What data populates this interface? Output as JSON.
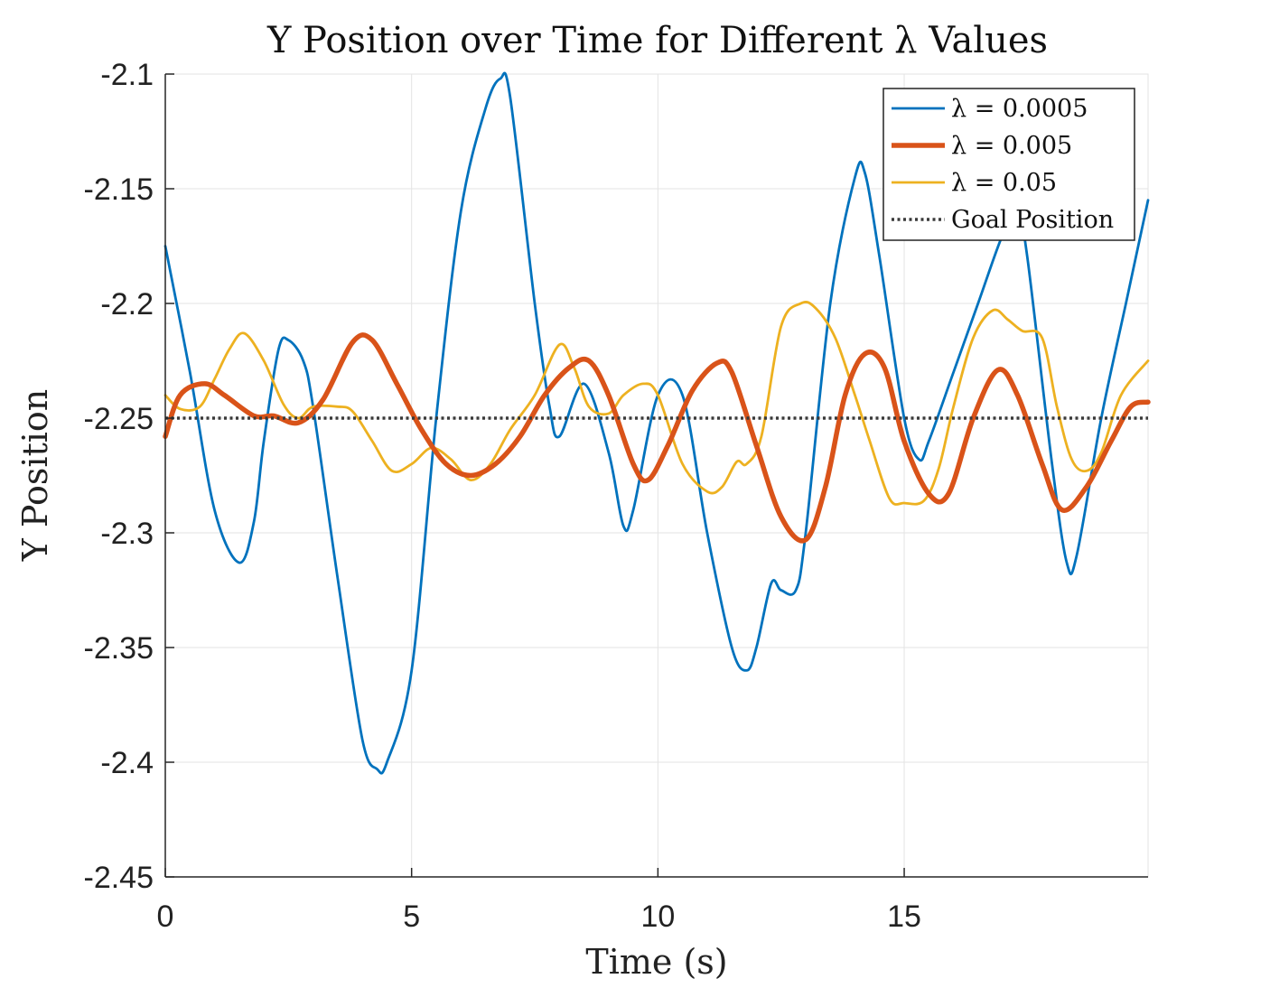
{
  "chart_data": {
    "type": "line",
    "title": "Y Position over Time for Different λ Values",
    "xlabel": "Time (s)",
    "ylabel": "Y Position",
    "xlim": [
      0,
      19.95
    ],
    "ylim": [
      -2.45,
      -2.1
    ],
    "xticks": [
      0,
      5,
      10,
      15
    ],
    "xtick_labels": [
      "0",
      "5",
      "10",
      "15"
    ],
    "yticks": [
      -2.1,
      -2.15,
      -2.2,
      -2.25,
      -2.3,
      -2.35,
      -2.4,
      -2.45
    ],
    "ytick_labels": [
      "-2.1",
      "-2.15",
      "-2.2",
      "-2.25",
      "-2.3",
      "-2.35",
      "-2.4",
      "-2.45"
    ],
    "grid": true,
    "legend_position": "top-right",
    "series": [
      {
        "name": "λ = 0.0005",
        "color": "#0072BD",
        "style": "solid",
        "x": [
          0,
          0.5,
          1.0,
          1.5,
          1.8,
          2.0,
          2.3,
          2.5,
          2.8,
          3.0,
          3.5,
          4.0,
          4.3,
          4.5,
          5.0,
          5.5,
          6.0,
          6.5,
          6.8,
          7.0,
          7.5,
          7.8,
          8.0,
          8.5,
          9.0,
          9.3,
          9.5,
          10.0,
          10.5,
          11.0,
          11.5,
          11.8,
          12.0,
          12.3,
          12.5,
          12.8,
          13.0,
          13.5,
          14.0,
          14.2,
          14.5,
          15.0,
          15.3,
          15.5,
          16.0,
          16.5,
          17.0,
          17.3,
          17.5,
          18.0,
          18.3,
          18.5,
          19.0,
          19.5,
          19.95
        ],
        "y": [
          -2.175,
          -2.23,
          -2.29,
          -2.313,
          -2.295,
          -2.26,
          -2.22,
          -2.216,
          -2.225,
          -2.245,
          -2.32,
          -2.39,
          -2.403,
          -2.4,
          -2.36,
          -2.25,
          -2.16,
          -2.115,
          -2.102,
          -2.11,
          -2.2,
          -2.245,
          -2.258,
          -2.235,
          -2.265,
          -2.297,
          -2.29,
          -2.24,
          -2.24,
          -2.3,
          -2.35,
          -2.36,
          -2.35,
          -2.322,
          -2.325,
          -2.325,
          -2.3,
          -2.2,
          -2.145,
          -2.143,
          -2.18,
          -2.25,
          -2.268,
          -2.26,
          -2.23,
          -2.2,
          -2.17,
          -2.16,
          -2.18,
          -2.27,
          -2.313,
          -2.31,
          -2.25,
          -2.2,
          -2.155
        ]
      },
      {
        "name": "λ = 0.005",
        "color": "#D95319",
        "style": "bold",
        "x": [
          0,
          0.3,
          0.8,
          1.2,
          1.8,
          2.2,
          2.7,
          3.2,
          3.8,
          4.2,
          4.7,
          5.2,
          5.7,
          6.2,
          6.7,
          7.2,
          7.7,
          8.2,
          8.6,
          9.0,
          9.5,
          9.8,
          10.2,
          10.7,
          11.2,
          11.5,
          12.0,
          12.5,
          13.0,
          13.4,
          13.8,
          14.2,
          14.6,
          15.0,
          15.5,
          15.9,
          16.4,
          16.9,
          17.3,
          17.8,
          18.2,
          18.7,
          19.2,
          19.6,
          19.95
        ],
        "y": [
          -2.258,
          -2.24,
          -2.235,
          -2.24,
          -2.249,
          -2.249,
          -2.252,
          -2.242,
          -2.217,
          -2.216,
          -2.235,
          -2.255,
          -2.27,
          -2.275,
          -2.27,
          -2.258,
          -2.24,
          -2.228,
          -2.225,
          -2.24,
          -2.27,
          -2.277,
          -2.262,
          -2.238,
          -2.226,
          -2.23,
          -2.262,
          -2.293,
          -2.303,
          -2.28,
          -2.24,
          -2.222,
          -2.228,
          -2.26,
          -2.283,
          -2.283,
          -2.25,
          -2.229,
          -2.24,
          -2.27,
          -2.29,
          -2.28,
          -2.26,
          -2.245,
          -2.243
        ]
      },
      {
        "name": "λ = 0.05",
        "color": "#EDB120",
        "style": "solid",
        "x": [
          0,
          0.3,
          0.7,
          1.0,
          1.3,
          1.6,
          2.0,
          2.4,
          2.7,
          3.0,
          3.5,
          3.8,
          4.2,
          4.6,
          5.0,
          5.4,
          5.8,
          6.2,
          6.6,
          7.0,
          7.5,
          8.0,
          8.3,
          8.6,
          9.0,
          9.3,
          9.7,
          10.0,
          10.5,
          11.0,
          11.3,
          11.6,
          11.8,
          12.1,
          12.5,
          12.9,
          13.2,
          13.6,
          14.0,
          14.3,
          14.7,
          15.0,
          15.4,
          15.7,
          16.0,
          16.4,
          16.8,
          17.1,
          17.4,
          17.8,
          18.1,
          18.4,
          18.7,
          19.0,
          19.4,
          19.95
        ],
        "y": [
          -2.24,
          -2.246,
          -2.245,
          -2.233,
          -2.22,
          -2.213,
          -2.225,
          -2.244,
          -2.25,
          -2.245,
          -2.245,
          -2.247,
          -2.26,
          -2.273,
          -2.27,
          -2.263,
          -2.268,
          -2.277,
          -2.27,
          -2.255,
          -2.24,
          -2.218,
          -2.228,
          -2.245,
          -2.248,
          -2.24,
          -2.235,
          -2.24,
          -2.27,
          -2.282,
          -2.28,
          -2.269,
          -2.27,
          -2.258,
          -2.21,
          -2.2,
          -2.202,
          -2.215,
          -2.24,
          -2.26,
          -2.285,
          -2.287,
          -2.286,
          -2.272,
          -2.245,
          -2.215,
          -2.203,
          -2.207,
          -2.212,
          -2.215,
          -2.245,
          -2.268,
          -2.273,
          -2.265,
          -2.24,
          -2.225
        ]
      },
      {
        "name": "Goal Position",
        "color": "#3a3a3a",
        "style": "dotted",
        "x": [
          0,
          19.95
        ],
        "y": [
          -2.25,
          -2.25
        ]
      }
    ]
  }
}
